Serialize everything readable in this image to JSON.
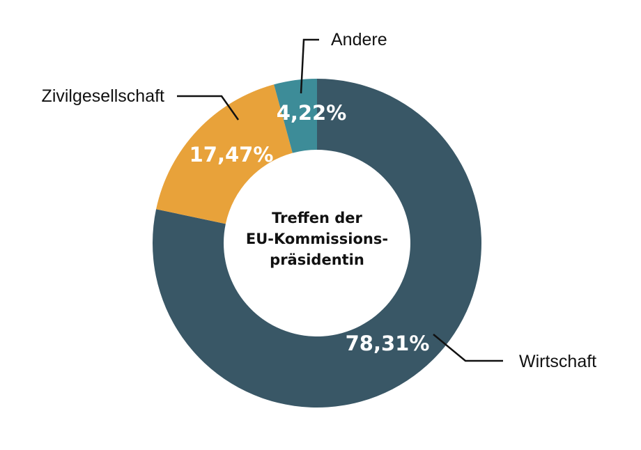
{
  "chart_data": {
    "type": "pie",
    "donut": true,
    "center_label": [
      "Treffen der",
      "EU-Kommissions-",
      "präsidentin"
    ],
    "slices": [
      {
        "label": "Wirtschaft",
        "value": 78.31,
        "display": "78,31%",
        "color": "#395766"
      },
      {
        "label": "Zivilgesellschaft",
        "value": 17.47,
        "display": "17,47%",
        "color": "#e8a23a"
      },
      {
        "label": "Andere",
        "value": 4.22,
        "display": "4,22%",
        "color": "#3d8c98"
      }
    ],
    "legend": "none"
  }
}
